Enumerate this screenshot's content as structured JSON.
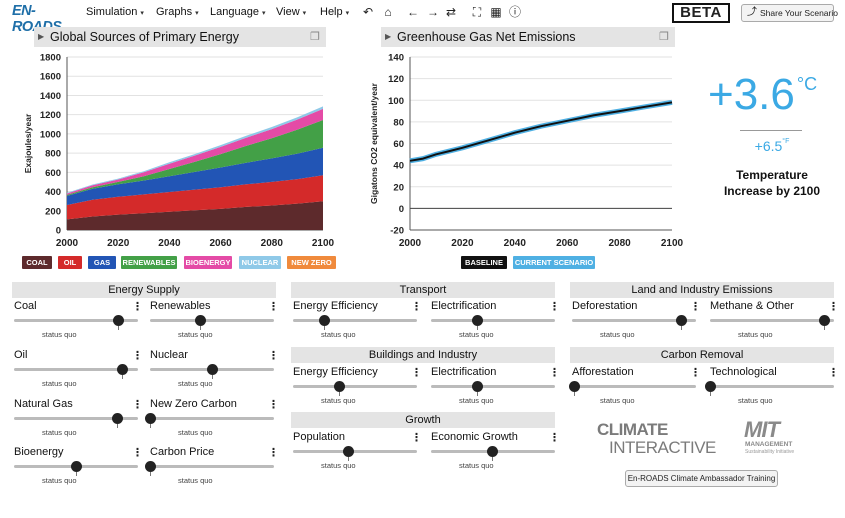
{
  "app": {
    "logo_text": "EN-ROADS",
    "beta_label": "BETA",
    "share_label": "Share Your Scenario",
    "share_icon": "share-icon"
  },
  "menu": [
    {
      "label": "Simulation"
    },
    {
      "label": "Graphs"
    },
    {
      "label": "Language"
    },
    {
      "label": "View"
    },
    {
      "label": "Help"
    }
  ],
  "toolbar": [
    {
      "icon": "undo-icon",
      "glyph": "↶"
    },
    {
      "icon": "home-icon",
      "glyph": "⌂"
    },
    {
      "icon": "back-icon",
      "glyph": "←"
    },
    {
      "icon": "forward-icon",
      "glyph": "→"
    },
    {
      "icon": "refresh-icon",
      "glyph": "⇄"
    },
    {
      "icon": "fullscreen-icon",
      "glyph": "⛶"
    },
    {
      "icon": "grid-icon",
      "glyph": "▦"
    },
    {
      "icon": "info-icon",
      "glyph": "ⓘ"
    }
  ],
  "energy_chart": {
    "title": "Global Sources of Primary Energy",
    "chart_data": {
      "type": "area",
      "stacked": true,
      "x": [
        2000,
        2010,
        2020,
        2030,
        2040,
        2050,
        2060,
        2070,
        2080,
        2090,
        2100
      ],
      "ylabel": "Exajoules/year",
      "xlim": [
        2000,
        2100
      ],
      "ylim": [
        0,
        1800
      ],
      "yticks": [
        0,
        200,
        400,
        600,
        800,
        1000,
        1200,
        1400,
        1600,
        1800
      ],
      "xticks": [
        2000,
        2020,
        2040,
        2060,
        2080,
        2100
      ],
      "series": [
        {
          "name": "COAL",
          "color": "#5d2a2c",
          "values": [
            110,
            140,
            160,
            175,
            190,
            205,
            220,
            240,
            255,
            275,
            300
          ]
        },
        {
          "name": "OIL",
          "color": "#d42a2a",
          "values": [
            150,
            175,
            185,
            195,
            205,
            215,
            225,
            235,
            245,
            255,
            270
          ]
        },
        {
          "name": "GAS",
          "color": "#2255b5",
          "values": [
            95,
            115,
            130,
            145,
            165,
            185,
            205,
            225,
            245,
            265,
            285
          ]
        },
        {
          "name": "RENEWABLES",
          "color": "#43a047",
          "values": [
            10,
            15,
            25,
            45,
            75,
            105,
            140,
            175,
            210,
            250,
            290
          ]
        },
        {
          "name": "BIOENERGY",
          "color": "#e44ba6",
          "values": [
            15,
            20,
            25,
            40,
            55,
            65,
            75,
            85,
            95,
            105,
            115
          ]
        },
        {
          "name": "NUCLEAR",
          "color": "#8fc9e8",
          "values": [
            8,
            8,
            10,
            12,
            14,
            16,
            18,
            20,
            22,
            24,
            26
          ]
        },
        {
          "name": "NEW ZERO",
          "color": "#f08a3c",
          "values": [
            0,
            0,
            0,
            0,
            0,
            0,
            0,
            0,
            0,
            0,
            0
          ]
        }
      ]
    }
  },
  "emissions_chart": {
    "title": "Greenhouse Gas Net Emissions",
    "chart_data": {
      "type": "line",
      "x": [
        2000,
        2005,
        2010,
        2015,
        2020,
        2030,
        2040,
        2050,
        2060,
        2070,
        2080,
        2090,
        2100
      ],
      "ylabel": "Gigatons CO2 equivalent/year",
      "xlim": [
        2000,
        2100
      ],
      "ylim": [
        -20,
        140
      ],
      "yticks": [
        -20,
        0,
        20,
        40,
        60,
        80,
        100,
        120,
        140
      ],
      "xticks": [
        2000,
        2020,
        2040,
        2060,
        2080,
        2100
      ],
      "series": [
        {
          "name": "BASELINE",
          "color": "#111111",
          "values": [
            44,
            46,
            50,
            53,
            56,
            63,
            70,
            76,
            81,
            86,
            90,
            94,
            98
          ]
        },
        {
          "name": "CURRENT SCENARIO",
          "color": "#4fb0e3",
          "values": [
            44,
            46,
            50,
            53,
            56,
            63,
            70,
            76,
            81,
            86,
            90,
            94,
            98
          ]
        }
      ]
    }
  },
  "temperature": {
    "celsius": "+3.6",
    "celsius_unit": "°C",
    "fahrenheit": "+6.5",
    "fahrenheit_unit": "°F",
    "label": "Temperature Increase by 2100"
  },
  "sections": {
    "energy_supply": "Energy Supply",
    "transport": "Transport",
    "buildings": "Buildings and Industry",
    "growth": "Growth",
    "land": "Land and Industry Emissions",
    "carbon_removal": "Carbon Removal"
  },
  "sliders": {
    "status_label": "status quo",
    "coal": {
      "label": "Coal",
      "value": 0.84
    },
    "renewables": {
      "label": "Renewables",
      "value": 0.4
    },
    "oil": {
      "label": "Oil",
      "value": 0.87
    },
    "nuclear": {
      "label": "Nuclear",
      "value": 0.5
    },
    "natural_gas": {
      "label": "Natural Gas",
      "value": 0.83
    },
    "new_zero_carbon": {
      "label": "New Zero Carbon",
      "value": 0.0
    },
    "bioenergy": {
      "label": "Bioenergy",
      "value": 0.5
    },
    "carbon_price": {
      "label": "Carbon Price",
      "value": 0.0
    },
    "transport_efficiency": {
      "label": "Energy Efficiency",
      "value": 0.25
    },
    "transport_electrification": {
      "label": "Electrification",
      "value": 0.37
    },
    "buildings_efficiency": {
      "label": "Energy Efficiency",
      "value": 0.37
    },
    "buildings_electrification": {
      "label": "Electrification",
      "value": 0.37
    },
    "population": {
      "label": "Population",
      "value": 0.44
    },
    "economic_growth": {
      "label": "Economic Growth",
      "value": 0.49
    },
    "deforestation": {
      "label": "Deforestation",
      "value": 0.88
    },
    "methane": {
      "label": "Methane & Other",
      "value": 0.92
    },
    "afforestation": {
      "label": "Afforestation",
      "value": 0.02
    },
    "technological": {
      "label": "Technological",
      "value": 0.0
    }
  },
  "logos": {
    "ci_top": "CLIMATE",
    "ci_bottom": "INTERACTIVE",
    "mit_big": "MIT",
    "mit_mgmt": "MANAGEMENT",
    "mit_sust": "Sustainability Initiative"
  },
  "training_button": "En-ROADS Climate Ambassador Training"
}
